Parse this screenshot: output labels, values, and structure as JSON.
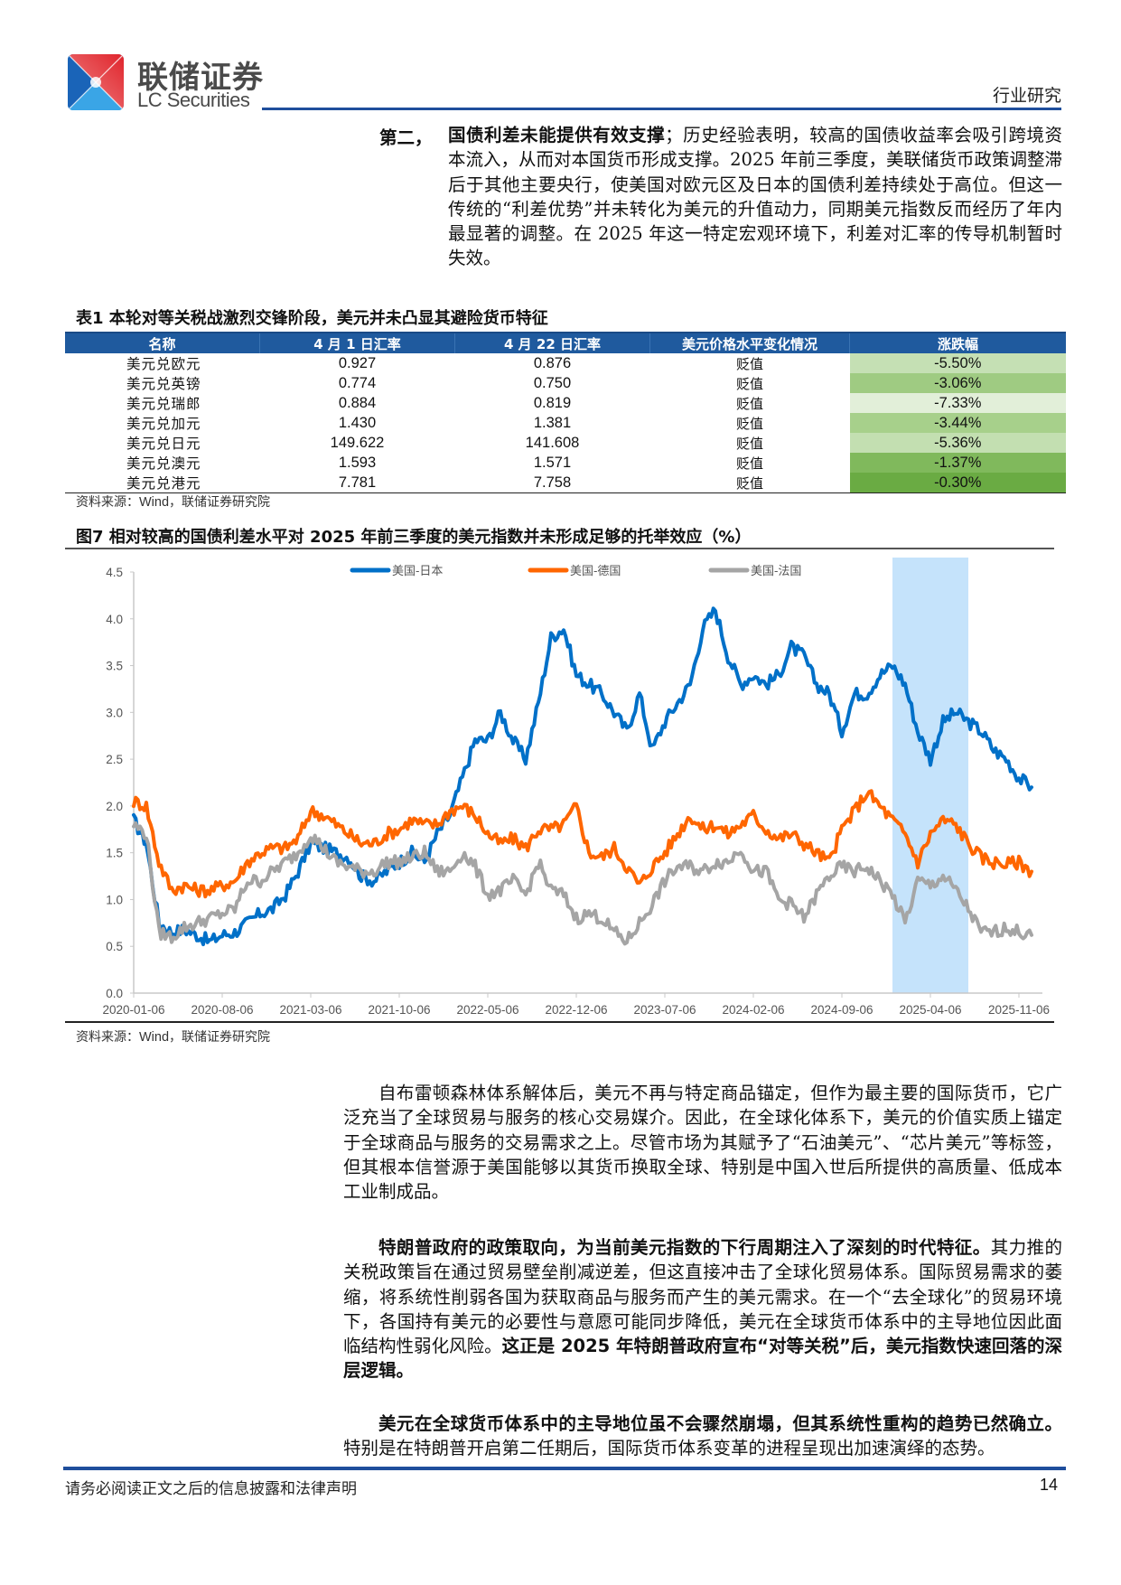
{
  "header": {
    "brand_cn": "联储证券",
    "brand_en": "LC Securities",
    "section_tag": "行业研究"
  },
  "intro": {
    "label": "第二，",
    "bold_lead": "国债利差未能提供有效支撑",
    "text": "；历史经验表明，较高的国债收益率会吸引跨境资本流入，从而对本国货币形成支撑。2025 年前三季度，美联储货币政策调整滞后于其他主要央行，使美国对欧元区及日本的国债利差持续处于高位。但这一传统的“利差优势”并未转化为美元的升值动力，同期美元指数反而经历了年内最显著的调整。在 2025 年这一特定宏观环境下，利差对汇率的传导机制暂时失效。"
  },
  "table": {
    "title": "表1  本轮对等关税战激烈交锋阶段，美元并未凸显其避险货币特征",
    "headers": [
      "名称",
      "4 月 1 日汇率",
      "4 月 22 日汇率",
      "美元价格水平变化情况",
      "涨跌幅"
    ],
    "rows": [
      {
        "name": "美元兑欧元",
        "apr1": "0.927",
        "apr22": "0.876",
        "change": "贬值",
        "pct": "-5.50%",
        "color": "#c5e0b4"
      },
      {
        "name": "美元兑英镑",
        "apr1": "0.774",
        "apr22": "0.750",
        "change": "贬值",
        "pct": "-3.06%",
        "color": "#9fcb82"
      },
      {
        "name": "美元兑瑞郎",
        "apr1": "0.884",
        "apr22": "0.819",
        "change": "贬值",
        "pct": "-7.33%",
        "color": "#e2efd9"
      },
      {
        "name": "美元兑加元",
        "apr1": "1.430",
        "apr22": "1.381",
        "change": "贬值",
        "pct": "-3.44%",
        "color": "#a7d08b"
      },
      {
        "name": "美元兑日元",
        "apr1": "149.622",
        "apr22": "141.608",
        "change": "贬值",
        "pct": "-5.36%",
        "color": "#c3dfb1"
      },
      {
        "name": "美元兑澳元",
        "apr1": "1.593",
        "apr22": "1.571",
        "change": "贬值",
        "pct": "-1.37%",
        "color": "#80b95c"
      },
      {
        "name": "美元兑港元",
        "apr1": "7.781",
        "apr22": "7.758",
        "change": "贬值",
        "pct": "-0.30%",
        "color": "#6aab43"
      }
    ],
    "source_label": "资料来源：",
    "source_wind": "Wind",
    "source_rest": "，联储证券研究院"
  },
  "figure": {
    "title": "图7  相对较高的国债利差水平对 2025 年前三季度的美元指数并未形成足够的托举效应（%）",
    "source_label": "资料来源：",
    "source_wind": "Wind",
    "source_rest": "，联储证券研究院"
  },
  "chart_data": {
    "type": "line",
    "title": "相对较高的国债利差水平对 2025 年前三季度的美元指数并未形成足够的托举效应（%）",
    "xlabel": "",
    "ylabel": "%",
    "ylim": [
      0,
      4.5
    ],
    "yticks": [
      "0.0",
      "0.5",
      "1.0",
      "1.5",
      "2.0",
      "2.5",
      "3.0",
      "3.5",
      "4.0",
      "4.5"
    ],
    "x_tick_labels": [
      "2020-01-06",
      "2020-08-06",
      "2021-03-06",
      "2021-10-06",
      "2022-05-06",
      "2022-12-06",
      "2023-07-06",
      "2024-02-06",
      "2024-09-06",
      "2025-04-06",
      "2025-11-06"
    ],
    "legend_position": "top",
    "grid": false,
    "shaded_region": {
      "from": "2025-01",
      "to": "2025-07",
      "color": "#c5e3fb"
    },
    "x": [
      "2020-01",
      "2020-02",
      "2020-03",
      "2020-04",
      "2020-05",
      "2020-06",
      "2020-07",
      "2020-08",
      "2020-09",
      "2020-10",
      "2020-11",
      "2020-12",
      "2021-01",
      "2021-02",
      "2021-03",
      "2021-04",
      "2021-05",
      "2021-06",
      "2021-07",
      "2021-08",
      "2021-09",
      "2021-10",
      "2021-11",
      "2021-12",
      "2022-01",
      "2022-02",
      "2022-03",
      "2022-04",
      "2022-05",
      "2022-06",
      "2022-07",
      "2022-08",
      "2022-09",
      "2022-10",
      "2022-11",
      "2022-12",
      "2023-01",
      "2023-02",
      "2023-03",
      "2023-04",
      "2023-05",
      "2023-06",
      "2023-07",
      "2023-08",
      "2023-09",
      "2023-10",
      "2023-11",
      "2023-12",
      "2024-01",
      "2024-02",
      "2024-03",
      "2024-04",
      "2024-05",
      "2024-06",
      "2024-07",
      "2024-08",
      "2024-09",
      "2024-10",
      "2024-11",
      "2024-12",
      "2025-01",
      "2025-02",
      "2025-03",
      "2025-04",
      "2025-05",
      "2025-06",
      "2025-07",
      "2025-08",
      "2025-09",
      "2025-10",
      "2025-11",
      "2025-12"
    ],
    "series": [
      {
        "name": "美国-日本",
        "color": "#0070c8",
        "values": [
          1.85,
          1.6,
          0.75,
          0.65,
          0.68,
          0.62,
          0.55,
          0.62,
          0.65,
          0.75,
          0.85,
          0.9,
          1.05,
          1.3,
          1.6,
          1.55,
          1.5,
          1.45,
          1.25,
          1.2,
          1.3,
          1.4,
          1.5,
          1.4,
          1.7,
          1.9,
          2.3,
          2.7,
          2.7,
          3.0,
          2.7,
          2.5,
          3.1,
          3.8,
          3.9,
          3.4,
          3.3,
          3.2,
          3.0,
          2.8,
          3.2,
          2.6,
          2.9,
          3.1,
          3.3,
          3.9,
          4.1,
          3.6,
          3.3,
          3.4,
          3.3,
          3.4,
          3.7,
          3.6,
          3.3,
          3.2,
          2.8,
          3.2,
          3.2,
          3.4,
          3.5,
          3.3,
          2.8,
          2.5,
          2.9,
          3.0,
          2.9,
          2.8,
          2.6,
          2.5,
          2.3,
          2.2
        ]
      },
      {
        "name": "美国-德国",
        "color": "#ff6600",
        "values": [
          2.05,
          2.0,
          1.4,
          1.1,
          1.15,
          1.1,
          1.1,
          1.15,
          1.2,
          1.4,
          1.5,
          1.55,
          1.55,
          1.65,
          1.95,
          1.9,
          1.8,
          1.7,
          1.6,
          1.6,
          1.7,
          1.75,
          1.85,
          1.8,
          1.8,
          1.95,
          2.0,
          1.9,
          1.7,
          1.6,
          1.65,
          1.55,
          1.75,
          1.75,
          1.8,
          2.0,
          1.5,
          1.45,
          1.55,
          1.35,
          1.15,
          1.35,
          1.5,
          1.7,
          1.9,
          1.75,
          1.8,
          1.7,
          1.8,
          1.9,
          1.75,
          1.65,
          1.7,
          1.6,
          1.5,
          1.4,
          1.75,
          1.95,
          2.15,
          2.0,
          1.85,
          1.7,
          1.4,
          1.7,
          1.85,
          1.8,
          1.6,
          1.45,
          1.4,
          1.38,
          1.4,
          1.3
        ]
      },
      {
        "name": "美国-法国",
        "color": "#a5a5a5",
        "values": [
          1.8,
          1.7,
          0.65,
          0.6,
          0.7,
          0.75,
          0.8,
          0.85,
          0.9,
          1.2,
          1.2,
          1.3,
          1.4,
          1.5,
          1.7,
          1.55,
          1.4,
          1.35,
          1.3,
          1.3,
          1.4,
          1.4,
          1.45,
          1.5,
          1.3,
          1.3,
          1.5,
          1.35,
          1.05,
          1.1,
          1.2,
          1.05,
          1.4,
          1.1,
          1.05,
          0.8,
          0.85,
          0.8,
          0.65,
          0.55,
          0.75,
          0.95,
          1.2,
          1.35,
          1.35,
          1.3,
          1.4,
          1.4,
          1.55,
          1.3,
          1.3,
          1.0,
          0.95,
          0.8,
          1.05,
          1.25,
          1.35,
          1.3,
          1.35,
          1.2,
          1.05,
          0.75,
          1.2,
          1.15,
          1.25,
          1.1,
          0.9,
          0.65,
          0.65,
          0.7,
          0.65,
          0.62
        ]
      }
    ]
  },
  "paragraphs": [
    {
      "segments": [
        {
          "text": "自布雷顿森林体系解体后，美元不再与特定商品锚定，但作为最主要的国际货币，它广泛充当了全球贸易与服务的核心交易媒介。因此，在全球化体系下，美元的价值实质上锚定于全球商品与服务的交易需求之上。尽管市场为其赋予了“石油美元”、“芯片美元”等标签，但其根本信誉源于美国能够以其货币换取全球、特别是中国入世后所提供的高质量、低成本工业制成品。",
          "bold": false
        }
      ]
    },
    {
      "segments": [
        {
          "text": "特朗普政府的政策取向，为当前美元指数的下行周期注入了深刻的时代特征。",
          "bold": true
        },
        {
          "text": "其力推的关税政策旨在通过贸易壁垒削减逆差，但这直接冲击了全球化贸易体系。国际贸易需求的萎缩，将系统性削弱各国为获取商品与服务而产生的美元需求。在一个“去全球化”的贸易环境下，各国持有美元的必要性与意愿可能同步降低，美元在全球货币体系中的主导地位因此面临结构性弱化风险。",
          "bold": false
        },
        {
          "text": "这正是 2025 年特朗普政府宣布“对等关税”后，美元指数快速回落的深层逻辑。",
          "bold": true
        }
      ]
    },
    {
      "segments": [
        {
          "text": "美元在全球货币体系中的主导地位虽不会骤然崩塌，但其系统性重构的趋势已然确立。",
          "bold": true
        },
        {
          "text": "特别是在特朗普开启第二任期后，国际货币体系变革的进程呈现出加速演绎的态势。",
          "bold": false
        }
      ]
    }
  ],
  "footer": {
    "disclaimer": "请务必阅读正文之后的信息披露和法律声明",
    "page_number": "14"
  }
}
